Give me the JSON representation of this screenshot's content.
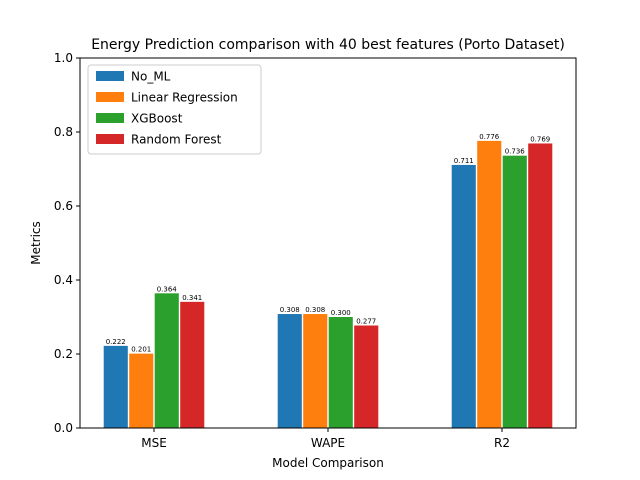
{
  "chart_data": {
    "type": "bar",
    "title": "Energy Prediction comparison with 40 best features (Porto Dataset)",
    "xlabel": "Model Comparison",
    "ylabel": "Metrics",
    "ylim": [
      0,
      1.0
    ],
    "yticks": [
      "0.0",
      "0.2",
      "0.4",
      "0.6",
      "0.8",
      "1.0"
    ],
    "categories": [
      "MSE",
      "WAPE",
      "R2"
    ],
    "series": [
      {
        "name": "No_ML",
        "color": "#1f77b4",
        "values": [
          0.222,
          0.308,
          0.711
        ],
        "labels": [
          "0.222",
          "0.308",
          "0.711"
        ]
      },
      {
        "name": "Linear Regression",
        "color": "#ff7f0e",
        "values": [
          0.201,
          0.308,
          0.776
        ],
        "labels": [
          "0.201",
          "0.308",
          "0.776"
        ]
      },
      {
        "name": "XGBoost",
        "color": "#2ca02c",
        "values": [
          0.364,
          0.3,
          0.736
        ],
        "labels": [
          "0.364",
          "0.300",
          "0.736"
        ]
      },
      {
        "name": "Random Forest",
        "color": "#d62728",
        "values": [
          0.341,
          0.277,
          0.769
        ],
        "labels": [
          "0.341",
          "0.277",
          "0.769"
        ]
      }
    ],
    "legend_position": "top-left",
    "grid": false
  }
}
